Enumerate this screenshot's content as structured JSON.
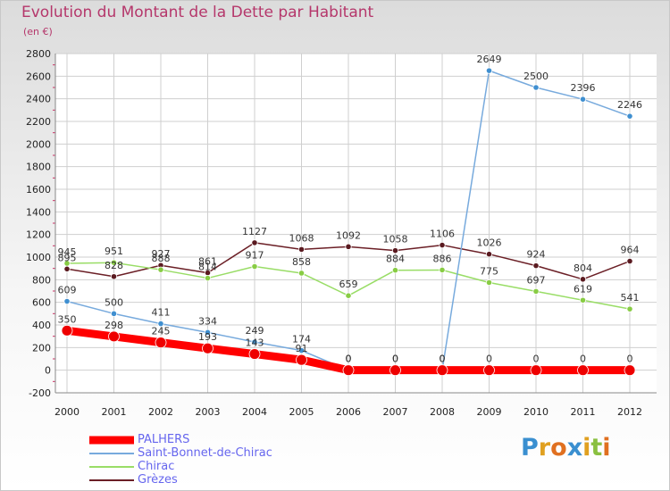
{
  "title": "Evolution du Montant de la Dette par Habitant",
  "unit": "(en €)",
  "brand": {
    "letters": [
      {
        "char": "P",
        "color": "#3a8fd0"
      },
      {
        "char": "r",
        "color": "#e0a020"
      },
      {
        "char": "o",
        "color": "#e07020"
      },
      {
        "char": "x",
        "color": "#3a8fd0"
      },
      {
        "char": "i",
        "color": "#e0a020"
      },
      {
        "char": "t",
        "color": "#8ac040"
      },
      {
        "char": "i",
        "color": "#e07020"
      }
    ]
  },
  "chart_data": {
    "type": "line",
    "x": [
      "2000",
      "2001",
      "2002",
      "2003",
      "2004",
      "2005",
      "2006",
      "2007",
      "2008",
      "2009",
      "2010",
      "2011",
      "2012"
    ],
    "ylim": [
      -200,
      2800
    ],
    "yticks": [
      "-200",
      "0",
      "200",
      "400",
      "600",
      "800",
      "1000",
      "1200",
      "1400",
      "1600",
      "1800",
      "2000",
      "2200",
      "2400",
      "2600",
      "2800"
    ],
    "grid": true,
    "legend_position": "bottom-left",
    "series": [
      {
        "name": "Grèzes",
        "color": "#6b1f26",
        "marker": "#5a1a20",
        "width": 1.5,
        "values": [
          895,
          828,
          927,
          861,
          1127,
          1068,
          1092,
          1058,
          1106,
          1026,
          924,
          804,
          964
        ]
      },
      {
        "name": "Chirac",
        "color": "#99dd66",
        "marker": "#88cc44",
        "width": 1.5,
        "values": [
          945,
          951,
          888,
          814,
          917,
          858,
          659,
          884,
          886,
          775,
          697,
          619,
          541
        ]
      },
      {
        "name": "Saint-Bonnet-de-Chirac",
        "color": "#77aadd",
        "marker": "#3f8fd0",
        "width": 1.5,
        "values": [
          609,
          500,
          411,
          334,
          249,
          174,
          0,
          0,
          0,
          2649,
          2500,
          2396,
          2246
        ]
      },
      {
        "name": "PALHERS",
        "color": "#ff0000",
        "marker": "#ee0000",
        "width": 9,
        "values": [
          350,
          298,
          245,
          193,
          143,
          91,
          0,
          0,
          0,
          0,
          0,
          0,
          0
        ]
      }
    ],
    "legend": [
      "PALHERS",
      "Saint-Bonnet-de-Chirac",
      "Chirac",
      "Grèzes"
    ]
  }
}
